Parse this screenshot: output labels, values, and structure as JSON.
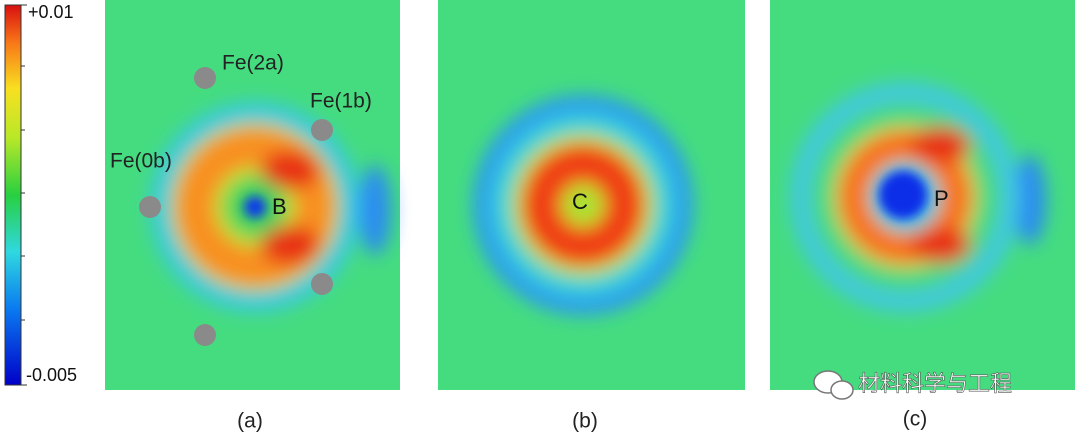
{
  "colorbar": {
    "max_label": "+0.01",
    "min_label": "-0.005"
  },
  "panels": [
    {
      "label": "(a)",
      "atom": "B",
      "sites": [
        "Fe(2a)",
        "Fe(1b)",
        "Fe(0b)"
      ]
    },
    {
      "label": "(b)",
      "atom": "C"
    },
    {
      "label": "(c)",
      "atom": "P"
    }
  ],
  "watermark": "材料科学与工程"
}
